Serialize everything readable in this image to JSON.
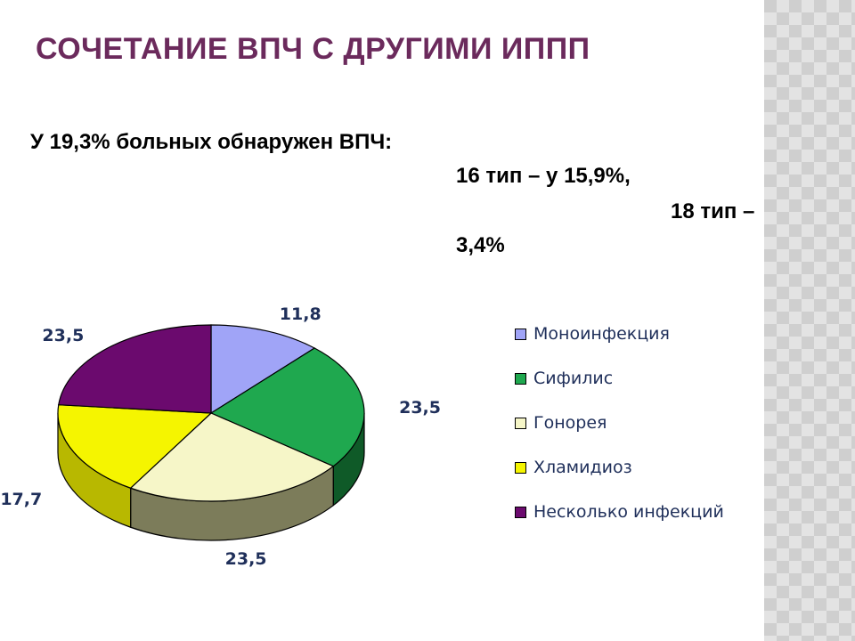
{
  "slide": {
    "title": "СОЧЕТАНИЕ ВПЧ С ДРУГИМИ ИППП",
    "text_lines": [
      "У 19,3% больных обнаружен ВПЧ:",
      "16 тип – у 15,9%,",
      "18 тип –",
      "3,4%"
    ]
  },
  "chart_data": {
    "type": "pie",
    "title": "",
    "legend_position": "right",
    "categories": [
      "Моноинфекция",
      "Сифилис",
      "Гонорея",
      "Хламидиоз",
      "Несколько инфекций"
    ],
    "values": [
      11.8,
      23.5,
      23.5,
      17.7,
      23.5
    ],
    "data_labels": [
      "11,8",
      "23,5",
      "23,5",
      "17,7",
      "23,5"
    ],
    "colors": [
      "#a0a4f7",
      "#1fa84f",
      "#f6f6c8",
      "#f5f500",
      "#6b0a6e"
    ],
    "side_colors": [
      "#6f73b8",
      "#0f5a28",
      "#7c7c5a",
      "#b8b800",
      "#3a0540"
    ],
    "style": "3d-pie"
  }
}
